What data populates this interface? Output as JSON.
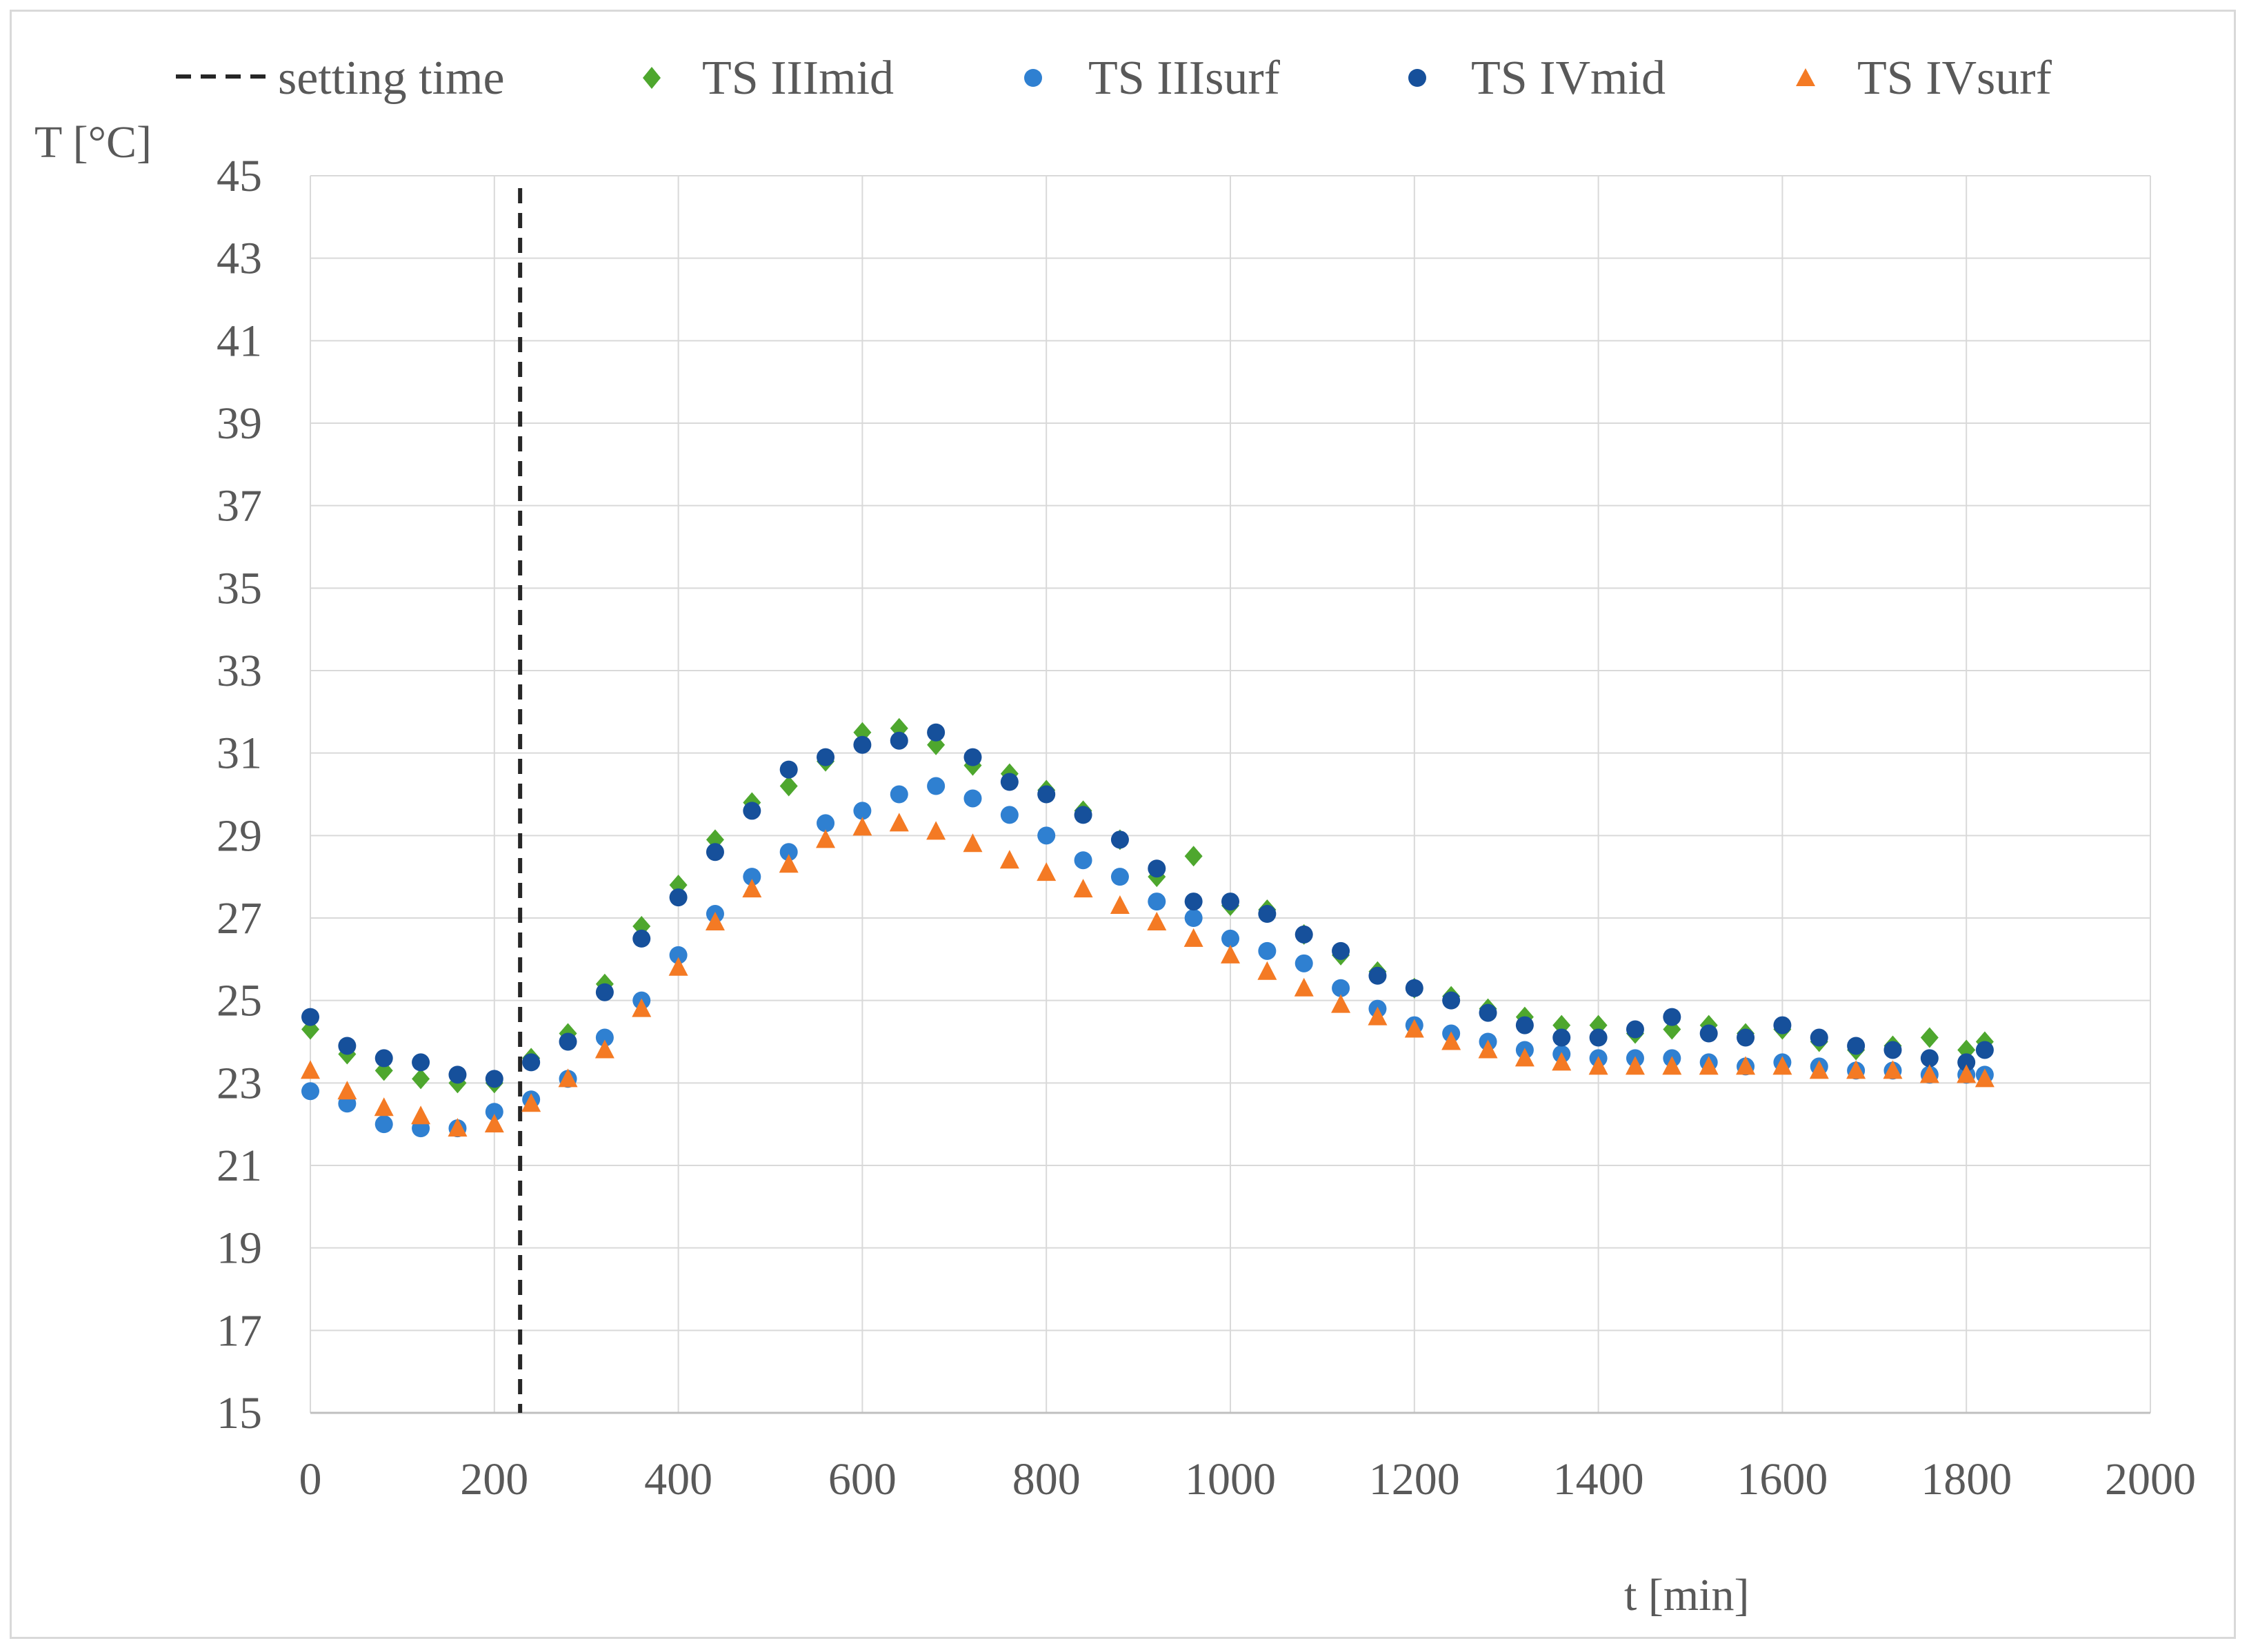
{
  "chart_data": {
    "type": "scatter",
    "title": "",
    "xlabel": "t [min]",
    "ylabel": "T [°C]",
    "xlim": [
      0,
      2000
    ],
    "ylim": [
      15,
      45
    ],
    "xticks": [
      0,
      200,
      400,
      600,
      800,
      1000,
      1200,
      1400,
      1600,
      1800,
      2000
    ],
    "yticks": [
      15,
      17,
      19,
      21,
      23,
      25,
      27,
      29,
      31,
      33,
      35,
      37,
      39,
      41,
      43,
      45
    ],
    "grid": true,
    "legend_position": "top",
    "reference_line": {
      "name": "setting time",
      "x": 228,
      "style": "dashed",
      "color": "#262626"
    },
    "series": [
      {
        "name": "TS IIImid",
        "marker": "diamond",
        "color": "#4ea72e",
        "x": [
          0,
          40,
          80,
          120,
          160,
          200,
          240,
          280,
          320,
          360,
          400,
          440,
          480,
          520,
          560,
          600,
          640,
          680,
          720,
          760,
          800,
          840,
          880,
          920,
          960,
          1000,
          1040,
          1080,
          1120,
          1160,
          1200,
          1240,
          1280,
          1320,
          1360,
          1400,
          1440,
          1480,
          1520,
          1560,
          1600,
          1640,
          1680,
          1720,
          1760,
          1800,
          1820
        ],
        "y": [
          24.3,
          23.7,
          23.3,
          23.1,
          23.0,
          23.0,
          23.6,
          24.2,
          25.4,
          26.8,
          27.8,
          28.9,
          29.8,
          30.2,
          30.8,
          31.5,
          31.6,
          31.2,
          30.7,
          30.5,
          30.1,
          29.6,
          28.9,
          28.0,
          28.5,
          27.3,
          27.2,
          26.6,
          26.1,
          25.7,
          25.3,
          25.1,
          24.8,
          24.6,
          24.4,
          24.4,
          24.2,
          24.3,
          24.4,
          24.2,
          24.3,
          24.0,
          23.8,
          23.9,
          24.1,
          23.8,
          24.0
        ]
      },
      {
        "name": "TS IIIsurf",
        "marker": "circle",
        "color": "#2f80d1",
        "x": [
          0,
          40,
          80,
          120,
          160,
          200,
          240,
          280,
          320,
          360,
          400,
          440,
          480,
          520,
          560,
          600,
          640,
          680,
          720,
          760,
          800,
          840,
          880,
          920,
          960,
          1000,
          1040,
          1080,
          1120,
          1160,
          1200,
          1240,
          1280,
          1320,
          1360,
          1400,
          1440,
          1480,
          1520,
          1560,
          1600,
          1640,
          1680,
          1720,
          1760,
          1800,
          1820
        ],
        "y": [
          22.8,
          22.5,
          22.0,
          21.9,
          21.9,
          22.3,
          22.6,
          23.1,
          24.1,
          25.0,
          26.1,
          27.1,
          28.0,
          28.6,
          29.3,
          29.6,
          30.0,
          30.2,
          29.9,
          29.5,
          29.0,
          28.4,
          28.0,
          27.4,
          27.0,
          26.5,
          26.2,
          25.9,
          25.3,
          24.8,
          24.4,
          24.2,
          24.0,
          23.8,
          23.7,
          23.6,
          23.6,
          23.6,
          23.5,
          23.4,
          23.5,
          23.4,
          23.3,
          23.3,
          23.2,
          23.2,
          23.2
        ]
      },
      {
        "name": "TS IVmid",
        "marker": "circle",
        "color": "#16509b",
        "x": [
          0,
          40,
          80,
          120,
          160,
          200,
          240,
          280,
          320,
          360,
          400,
          440,
          480,
          520,
          560,
          600,
          640,
          680,
          720,
          760,
          800,
          840,
          880,
          920,
          960,
          1000,
          1040,
          1080,
          1120,
          1160,
          1200,
          1240,
          1280,
          1320,
          1360,
          1400,
          1440,
          1480,
          1520,
          1560,
          1600,
          1640,
          1680,
          1720,
          1760,
          1800,
          1820
        ],
        "y": [
          24.6,
          23.9,
          23.6,
          23.5,
          23.2,
          23.1,
          23.5,
          24.0,
          25.2,
          26.5,
          27.5,
          28.6,
          29.6,
          30.6,
          30.9,
          31.2,
          31.3,
          31.5,
          30.9,
          30.3,
          30.0,
          29.5,
          28.9,
          28.2,
          27.4,
          27.4,
          27.1,
          26.6,
          26.2,
          25.6,
          25.3,
          25.0,
          24.7,
          24.4,
          24.1,
          24.1,
          24.3,
          24.6,
          24.2,
          24.1,
          24.4,
          24.1,
          23.9,
          23.8,
          23.6,
          23.5,
          23.8
        ]
      },
      {
        "name": "TS IVsurf",
        "marker": "triangle",
        "color": "#f47a24",
        "x": [
          0,
          40,
          80,
          120,
          160,
          200,
          240,
          280,
          320,
          360,
          400,
          440,
          480,
          520,
          560,
          600,
          640,
          680,
          720,
          760,
          800,
          840,
          880,
          920,
          960,
          1000,
          1040,
          1080,
          1120,
          1160,
          1200,
          1240,
          1280,
          1320,
          1360,
          1400,
          1440,
          1480,
          1520,
          1560,
          1600,
          1640,
          1680,
          1720,
          1760,
          1800,
          1820
        ],
        "y": [
          23.3,
          22.8,
          22.4,
          22.2,
          21.9,
          22.0,
          22.5,
          23.1,
          23.8,
          24.8,
          25.8,
          26.9,
          27.7,
          28.3,
          28.9,
          29.2,
          29.3,
          29.1,
          28.8,
          28.4,
          28.1,
          27.7,
          27.3,
          26.9,
          26.5,
          26.1,
          25.7,
          25.3,
          24.9,
          24.6,
          24.3,
          24.0,
          23.8,
          23.6,
          23.5,
          23.4,
          23.4,
          23.4,
          23.4,
          23.4,
          23.4,
          23.3,
          23.3,
          23.3,
          23.2,
          23.2,
          23.1
        ]
      }
    ]
  }
}
